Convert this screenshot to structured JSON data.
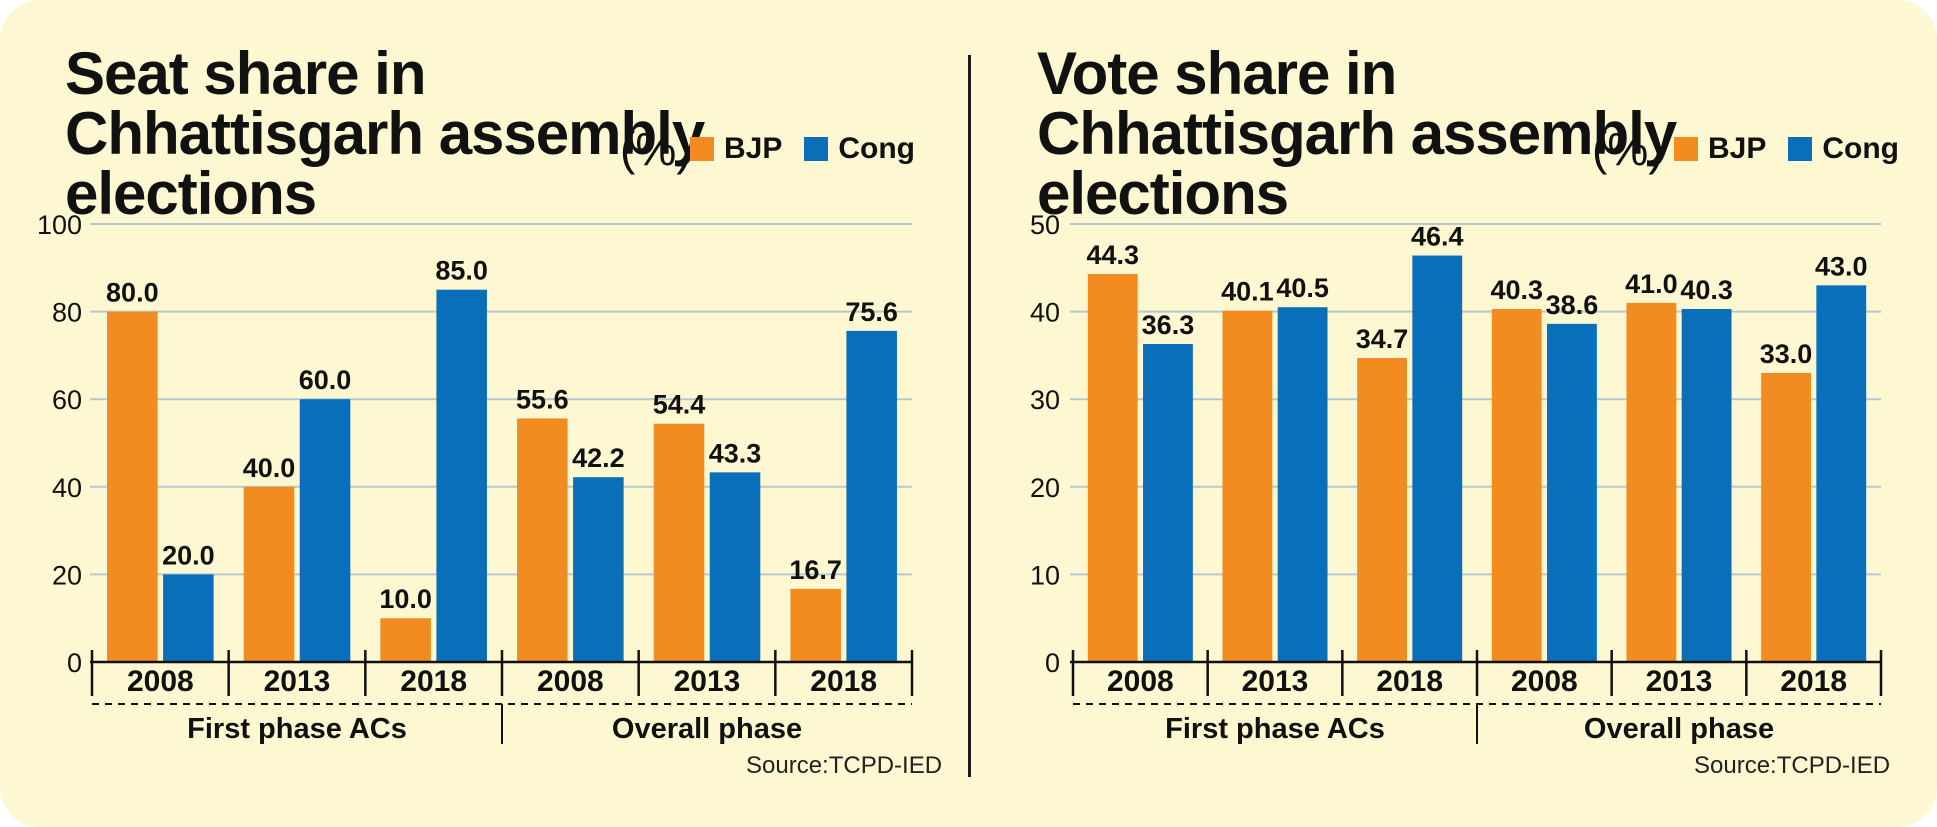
{
  "colors": {
    "bjp": "#f28c20",
    "cong": "#0a6fba",
    "grid": "#b8c7cf",
    "background": "#fdf8d2"
  },
  "chart_data": [
    {
      "type": "bar",
      "title": "Seat share in Chhattisgarh assembly elections",
      "unit_label": "(%)",
      "legend": [
        "BJP",
        "Cong"
      ],
      "groups": [
        "First phase ACs",
        "Overall phase"
      ],
      "categories": [
        "2008",
        "2013",
        "2018",
        "2008",
        "2013",
        "2018"
      ],
      "series": [
        {
          "name": "BJP",
          "values": [
            80.0,
            40.0,
            10.0,
            55.6,
            54.4,
            16.7
          ]
        },
        {
          "name": "Cong",
          "values": [
            20.0,
            60.0,
            85.0,
            42.2,
            43.3,
            75.6
          ]
        }
      ],
      "value_labels": {
        "BJP": [
          "80.0",
          "40.0",
          "10.0",
          "55.6",
          "54.4",
          "16.7"
        ],
        "Cong": [
          "20.0",
          "60.0",
          "85.0",
          "42.2",
          "43.3",
          "75.6"
        ]
      },
      "ylim": [
        0,
        100
      ],
      "yticks": [
        0,
        20,
        40,
        60,
        80,
        100
      ],
      "source": "Source:TCPD-IED",
      "grid": true
    },
    {
      "type": "bar",
      "title": "Vote share in Chhattisgarh assembly elections",
      "unit_label": "(%)",
      "legend": [
        "BJP",
        "Cong"
      ],
      "groups": [
        "First phase ACs",
        "Overall phase"
      ],
      "categories": [
        "2008",
        "2013",
        "2018",
        "2008",
        "2013",
        "2018"
      ],
      "series": [
        {
          "name": "BJP",
          "values": [
            44.3,
            40.1,
            34.7,
            40.3,
            41.0,
            33.0
          ]
        },
        {
          "name": "Cong",
          "values": [
            36.3,
            40.5,
            46.4,
            38.6,
            40.3,
            43.0
          ]
        }
      ],
      "value_labels": {
        "BJP": [
          "44.3",
          "40.1",
          "34.7",
          "40.3",
          "41.0",
          "33.0"
        ],
        "Cong": [
          "36.3",
          "40.5",
          "46.4",
          "38.6",
          "40.3",
          "43.0"
        ]
      },
      "ylim": [
        0,
        50
      ],
      "yticks": [
        0,
        10,
        20,
        30,
        40,
        50
      ],
      "source": "Source:TCPD-IED",
      "grid": true
    }
  ]
}
